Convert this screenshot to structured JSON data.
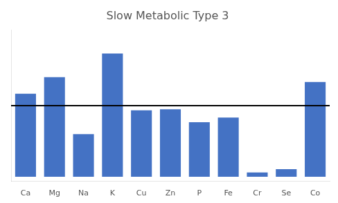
{
  "chart_data": {
    "type": "bar",
    "title": "Slow Metabolic Type 3",
    "categories": [
      "Ca",
      "Mg",
      "Na",
      "K",
      "Cu",
      "Zn",
      "P",
      "Fe",
      "Cr",
      "Se",
      "Co"
    ],
    "values": [
      3.5,
      4.2,
      1.8,
      5.2,
      2.8,
      2.85,
      2.3,
      2.5,
      0.18,
      0.32,
      4.0
    ],
    "color": "#4472C4",
    "hline": 3.0,
    "ylim": [
      -0.2,
      6.2
    ],
    "yticks": [],
    "grid": false,
    "tick_labels": "x"
  }
}
